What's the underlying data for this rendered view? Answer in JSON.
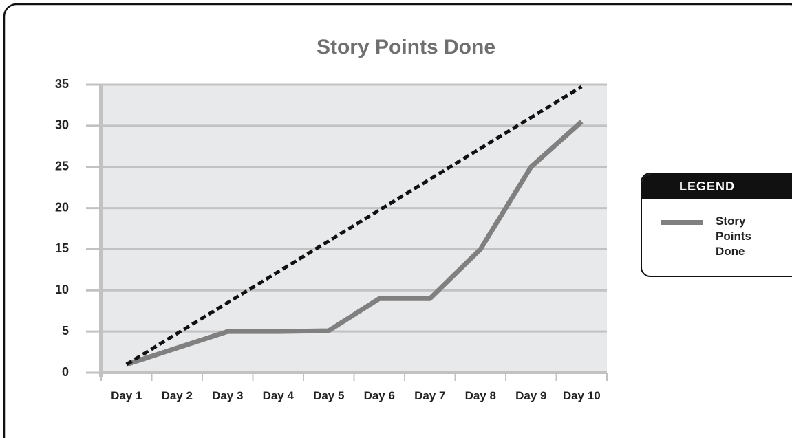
{
  "chart_data": {
    "type": "line",
    "title": "Story Points Done",
    "categories": [
      "Day 1",
      "Day 2",
      "Day 3",
      "Day 4",
      "Day 5",
      "Day 6",
      "Day 7",
      "Day 8",
      "Day 9",
      "Day 10"
    ],
    "series": [
      {
        "name": "Story Points Done",
        "color": "#808080",
        "values": [
          1,
          3,
          5,
          5,
          5.1,
          9,
          9,
          15,
          25,
          30.5
        ]
      },
      {
        "color": "#111111",
        "dashed": true,
        "values": [
          1,
          4.75,
          8.5,
          12.25,
          16,
          19.75,
          23.5,
          27.25,
          31,
          34.75
        ]
      }
    ],
    "ylim": [
      0,
      35
    ],
    "yticks": [
      0,
      5,
      10,
      15,
      20,
      25,
      30,
      35
    ],
    "grid": true,
    "legend": "right"
  }
}
